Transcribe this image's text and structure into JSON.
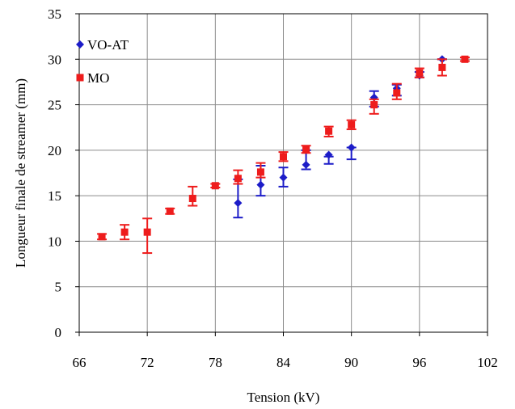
{
  "chart_data": {
    "type": "scatter",
    "xlabel": "Tension (kV)",
    "ylabel": "Longueur finale de streamer (mm)",
    "xlim": [
      66,
      102
    ],
    "ylim": [
      0,
      35
    ],
    "xticks": [
      66,
      72,
      78,
      84,
      90,
      96,
      102
    ],
    "yticks": [
      0,
      5,
      10,
      15,
      20,
      25,
      30,
      35
    ],
    "grid": true,
    "legend_position": "top-left",
    "series": [
      {
        "name": "VO-AT",
        "color": "#1c1cc8",
        "marker": "diamond",
        "points": [
          {
            "x": 80,
            "y": 14.2,
            "err": [
              12.6,
              16.8
            ]
          },
          {
            "x": 82,
            "y": 16.2,
            "err": [
              15.0,
              18.3
            ]
          },
          {
            "x": 84,
            "y": 17.0,
            "err": [
              16.0,
              18.1
            ]
          },
          {
            "x": 86,
            "y": 18.4,
            "err": [
              17.9,
              20.0
            ]
          },
          {
            "x": 88,
            "y": 19.5,
            "err": [
              18.5,
              19.3
            ]
          },
          {
            "x": 90,
            "y": 20.3,
            "err": [
              19.0,
              20.3
            ]
          },
          {
            "x": 92,
            "y": 25.8,
            "err": [
              24.8,
              26.5
            ]
          },
          {
            "x": 94,
            "y": 26.8,
            "err": [
              26.0,
              27.2
            ]
          },
          {
            "x": 96,
            "y": 28.2,
            "err": [
              28.0,
              28.6
            ]
          },
          {
            "x": 98,
            "y": 30.0,
            "err": [
              30.0,
              30.0
            ]
          }
        ]
      },
      {
        "name": "MO",
        "color": "#ee1c1c",
        "marker": "square",
        "points": [
          {
            "x": 68,
            "y": 10.5,
            "err": [
              10.2,
              10.8
            ]
          },
          {
            "x": 70,
            "y": 11.0,
            "err": [
              10.2,
              11.8
            ]
          },
          {
            "x": 72,
            "y": 11.0,
            "err": [
              8.7,
              12.5
            ]
          },
          {
            "x": 74,
            "y": 13.3,
            "err": [
              13.0,
              13.6
            ]
          },
          {
            "x": 76,
            "y": 14.7,
            "err": [
              13.9,
              16.0
            ]
          },
          {
            "x": 78,
            "y": 16.1,
            "err": [
              15.9,
              16.3
            ]
          },
          {
            "x": 80,
            "y": 16.9,
            "err": [
              16.3,
              17.8
            ]
          },
          {
            "x": 82,
            "y": 17.6,
            "err": [
              17.0,
              18.6
            ]
          },
          {
            "x": 84,
            "y": 19.3,
            "err": [
              18.8,
              19.8
            ]
          },
          {
            "x": 86,
            "y": 20.1,
            "err": [
              19.7,
              20.5
            ]
          },
          {
            "x": 88,
            "y": 22.1,
            "err": [
              21.5,
              22.6
            ]
          },
          {
            "x": 90,
            "y": 22.8,
            "err": [
              22.3,
              23.3
            ]
          },
          {
            "x": 92,
            "y": 25.0,
            "err": [
              24.0,
              25.6
            ]
          },
          {
            "x": 94,
            "y": 26.3,
            "err": [
              25.6,
              27.3
            ]
          },
          {
            "x": 96,
            "y": 28.5,
            "err": [
              28.0,
              29.0
            ]
          },
          {
            "x": 98,
            "y": 29.1,
            "err": [
              28.2,
              30.0
            ]
          },
          {
            "x": 100,
            "y": 30.0,
            "err": [
              29.8,
              30.2
            ]
          }
        ]
      }
    ]
  }
}
